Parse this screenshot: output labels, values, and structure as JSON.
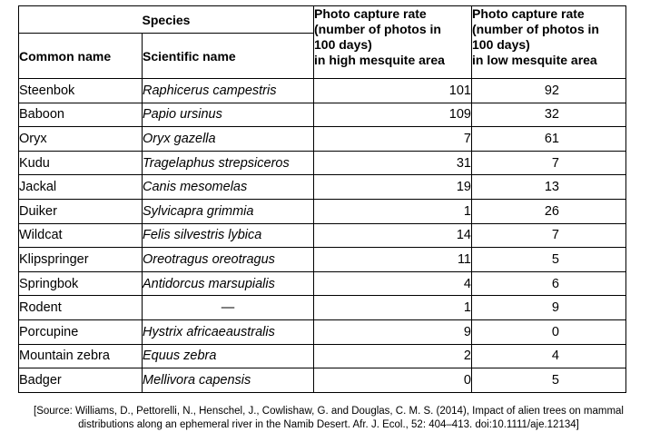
{
  "header": {
    "species": "Species",
    "high_rate": [
      "Photo capture rate",
      "(number of photos in",
      "100 days)",
      "in high mesquite area"
    ],
    "low_rate": [
      "Photo capture rate",
      "(number of photos in",
      "100 days)",
      "in low mesquite area"
    ],
    "common_name": "Common name",
    "scientific_name": "Scientific name"
  },
  "rows": [
    {
      "common": "Steenbok",
      "scientific": "Raphicerus campestris",
      "high": "101",
      "low": "92"
    },
    {
      "common": "Baboon",
      "scientific": "Papio ursinus",
      "high": "109",
      "low": "32"
    },
    {
      "common": "Oryx",
      "scientific": "Oryx gazella",
      "high": "7",
      "low": "61"
    },
    {
      "common": "Kudu",
      "scientific": "Tragelaphus strepsiceros",
      "high": "31",
      "low": "7"
    },
    {
      "common": "Jackal",
      "scientific": "Canis mesomelas",
      "high": "19",
      "low": "13"
    },
    {
      "common": "Duiker",
      "scientific": "Sylvicapra grimmia",
      "high": "1",
      "low": "26"
    },
    {
      "common": "Wildcat",
      "scientific": "Felis silvestris lybica",
      "high": "14",
      "low": "7"
    },
    {
      "common": "Klipspringer",
      "scientific": "Oreotragus oreotragus",
      "high": "11",
      "low": "5"
    },
    {
      "common": "Springbok",
      "scientific": "Antidorcus marsupialis",
      "high": "4",
      "low": "6"
    },
    {
      "common": "Rodent",
      "scientific": "—",
      "high": "1",
      "low": "9"
    },
    {
      "common": "Porcupine",
      "scientific": "Hystrix africaeaustralis",
      "high": "9",
      "low": "0"
    },
    {
      "common": "Mountain zebra",
      "scientific": "Equus zebra",
      "high": "2",
      "low": "4"
    },
    {
      "common": "Badger",
      "scientific": "Mellivora capensis",
      "high": "0",
      "low": "5"
    }
  ],
  "source": {
    "line1": "[Source: Williams, D., Pettorelli, N., Henschel, J., Cowlishaw, G. and Douglas, C. M. S. (2014), Impact of alien trees on mammal",
    "line2": "distributions along an ephemeral river in the Namib Desert. Afr. J. Ecol., 52: 404–413. doi:10.1111/aje.12134]"
  }
}
